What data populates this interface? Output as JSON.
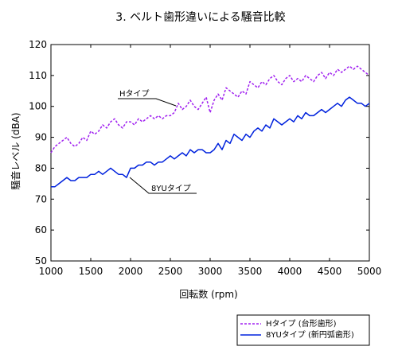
{
  "chart_data": {
    "type": "line",
    "title": "3. ベルト歯形違いによる騒音比較",
    "xlabel": "回転数 (rpm)",
    "ylabel": "騒音レベル (dBA)",
    "xlim": [
      1000,
      5000
    ],
    "ylim": [
      50,
      120
    ],
    "xticks": [
      1000,
      1500,
      2000,
      2500,
      3000,
      3500,
      4000,
      4500,
      5000
    ],
    "yticks": [
      50,
      60,
      70,
      80,
      90,
      100,
      110,
      120
    ],
    "grid": false,
    "legend_position": "bottom-right, outside plot",
    "annotations": [
      {
        "text": "Hタイプ",
        "series": 0
      },
      {
        "text": "8YUタイプ",
        "series": 1
      }
    ],
    "series": [
      {
        "name": "Hタイプ (台形歯形)",
        "color": "#a020f0",
        "style": "dashed",
        "x": [
          1000,
          1050,
          1100,
          1150,
          1200,
          1250,
          1300,
          1350,
          1400,
          1450,
          1500,
          1550,
          1600,
          1650,
          1700,
          1750,
          1800,
          1850,
          1900,
          1950,
          2000,
          2050,
          2100,
          2150,
          2200,
          2250,
          2300,
          2350,
          2400,
          2450,
          2500,
          2550,
          2600,
          2650,
          2700,
          2750,
          2800,
          2850,
          2900,
          2950,
          3000,
          3050,
          3100,
          3150,
          3200,
          3250,
          3300,
          3350,
          3400,
          3450,
          3500,
          3550,
          3600,
          3650,
          3700,
          3750,
          3800,
          3850,
          3900,
          3950,
          4000,
          4050,
          4100,
          4150,
          4200,
          4250,
          4300,
          4350,
          4400,
          4450,
          4500,
          4550,
          4600,
          4650,
          4700,
          4750,
          4800,
          4850,
          4900,
          4950,
          5000
        ],
        "values": [
          85,
          87,
          88,
          89,
          90,
          88,
          87,
          88,
          90,
          89,
          92,
          91,
          92,
          94,
          93,
          95,
          96,
          94,
          93,
          95,
          95,
          94,
          96,
          95,
          96,
          97,
          96,
          97,
          96,
          97,
          97,
          98,
          101,
          99,
          100,
          102,
          100,
          99,
          101,
          103,
          98,
          102,
          104,
          102,
          106,
          105,
          104,
          103,
          105,
          104,
          108,
          107,
          106,
          108,
          107,
          109,
          110,
          108,
          107,
          109,
          110,
          108,
          109,
          108,
          110,
          109,
          108,
          110,
          111,
          109,
          111,
          110,
          112,
          111,
          112,
          113,
          112,
          113,
          112,
          111,
          110
        ]
      },
      {
        "name": "8YUタイプ (新円弧歯形)",
        "color": "#0022dd",
        "style": "solid",
        "x": [
          1000,
          1050,
          1100,
          1150,
          1200,
          1250,
          1300,
          1350,
          1400,
          1450,
          1500,
          1550,
          1600,
          1650,
          1700,
          1750,
          1800,
          1850,
          1900,
          1950,
          2000,
          2050,
          2100,
          2150,
          2200,
          2250,
          2300,
          2350,
          2400,
          2450,
          2500,
          2550,
          2600,
          2650,
          2700,
          2750,
          2800,
          2850,
          2900,
          2950,
          3000,
          3050,
          3100,
          3150,
          3200,
          3250,
          3300,
          3350,
          3400,
          3450,
          3500,
          3550,
          3600,
          3650,
          3700,
          3750,
          3800,
          3850,
          3900,
          3950,
          4000,
          4050,
          4100,
          4150,
          4200,
          4250,
          4300,
          4350,
          4400,
          4450,
          4500,
          4550,
          4600,
          4650,
          4700,
          4750,
          4800,
          4850,
          4900,
          4950,
          5000
        ],
        "values": [
          74,
          74,
          75,
          76,
          77,
          76,
          76,
          77,
          77,
          77,
          78,
          78,
          79,
          78,
          79,
          80,
          79,
          78,
          78,
          77,
          80,
          80,
          81,
          81,
          82,
          82,
          81,
          82,
          82,
          83,
          84,
          83,
          84,
          85,
          84,
          86,
          85,
          86,
          86,
          85,
          85,
          86,
          88,
          86,
          89,
          88,
          91,
          90,
          89,
          91,
          90,
          92,
          93,
          92,
          94,
          93,
          96,
          95,
          94,
          95,
          96,
          95,
          97,
          96,
          98,
          97,
          97,
          98,
          99,
          98,
          99,
          100,
          101,
          100,
          102,
          103,
          102,
          101,
          101,
          100,
          101
        ]
      }
    ]
  }
}
